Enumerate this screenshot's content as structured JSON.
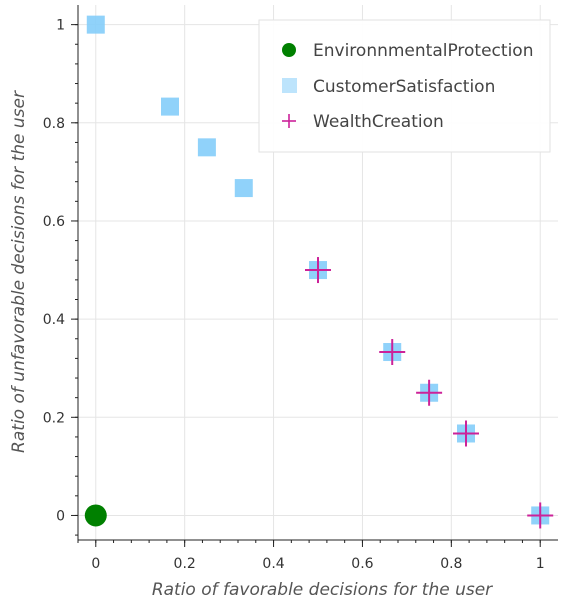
{
  "chart_data": {
    "type": "scatter",
    "xlabel": "Ratio of favorable decisions for the user",
    "ylabel": "Ratio of unfavorable decisions for the user",
    "xlim": [
      -0.04,
      1.04
    ],
    "ylim": [
      -0.05,
      1.04
    ],
    "x_ticks": [
      0,
      0.2,
      0.4,
      0.6,
      0.8,
      1
    ],
    "x_tick_labels": [
      "0",
      "0.2",
      "0.4",
      "0.6",
      "0.8",
      "1"
    ],
    "y_ticks": [
      0,
      0.2,
      0.4,
      0.6,
      0.8,
      1
    ],
    "y_tick_labels": [
      "0",
      "0.2",
      "0.4",
      "0.6",
      "0.8",
      "1"
    ],
    "grid": true,
    "legend_position": "top-right",
    "series": [
      {
        "name": "EnvironnmentalProtection",
        "marker": "circle",
        "color": "#008000",
        "points": [
          [
            0,
            0
          ]
        ]
      },
      {
        "name": "CustomerSatisfaction",
        "marker": "square",
        "color": "#87CEFA",
        "points": [
          [
            0,
            1
          ],
          [
            0.167,
            0.833
          ],
          [
            0.25,
            0.75
          ],
          [
            0.333,
            0.667
          ],
          [
            0.5,
            0.5
          ],
          [
            0.667,
            0.333
          ],
          [
            0.75,
            0.25
          ],
          [
            0.833,
            0.167
          ],
          [
            1,
            0
          ]
        ]
      },
      {
        "name": "WealthCreation",
        "marker": "cross",
        "color": "#CC2299",
        "points": [
          [
            0.5,
            0.5
          ],
          [
            0.667,
            0.333
          ],
          [
            0.75,
            0.25
          ],
          [
            0.833,
            0.167
          ],
          [
            1,
            0
          ]
        ]
      }
    ]
  }
}
